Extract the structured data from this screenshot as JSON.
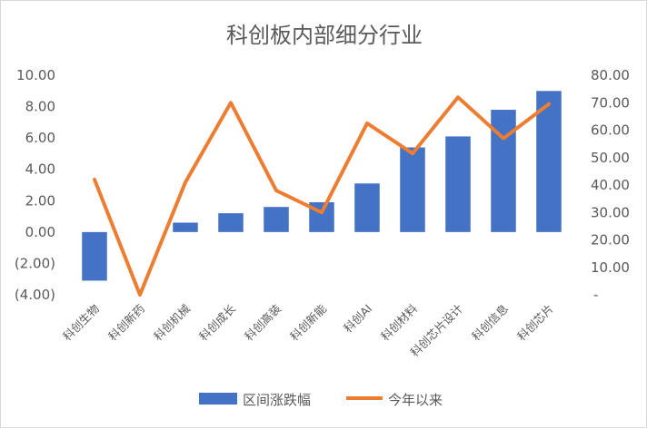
{
  "chart_data": {
    "type": "bar+line",
    "title": "科创板内部细分行业",
    "categories": [
      "科创生物",
      "科创新药",
      "科创机械",
      "科创成长",
      "科创高装",
      "科创新能",
      "科创AI",
      "科创材料",
      "科创芯片设计",
      "科创信息",
      "科创芯片"
    ],
    "series": [
      {
        "name": "区间涨跌幅",
        "type": "bar",
        "axis": "left",
        "color": "#4472C4",
        "values": [
          -3.1,
          0.0,
          0.6,
          1.2,
          1.6,
          1.9,
          3.1,
          5.4,
          6.1,
          7.8,
          9.0
        ]
      },
      {
        "name": "今年以来",
        "type": "line",
        "axis": "right",
        "color": "#ED7D31",
        "values": [
          42.0,
          0.0,
          41.0,
          70.0,
          38.0,
          30.0,
          62.5,
          51.5,
          72.0,
          57.0,
          69.5
        ]
      }
    ],
    "left_axis": {
      "min": -4,
      "max": 10,
      "step": 2,
      "tick_labels": [
        "(4.00)",
        "(2.00)",
        "0.00",
        "2.00",
        "4.00",
        "6.00",
        "8.00",
        "10.00"
      ],
      "negative_color": "#FF0000"
    },
    "right_axis": {
      "min": 0,
      "max": 80,
      "step": 10,
      "tick_labels": [
        "-",
        "10.00",
        "20.00",
        "30.00",
        "40.00",
        "50.00",
        "60.00",
        "70.00",
        "80.00"
      ]
    },
    "legend_position": "bottom",
    "grid": false
  }
}
